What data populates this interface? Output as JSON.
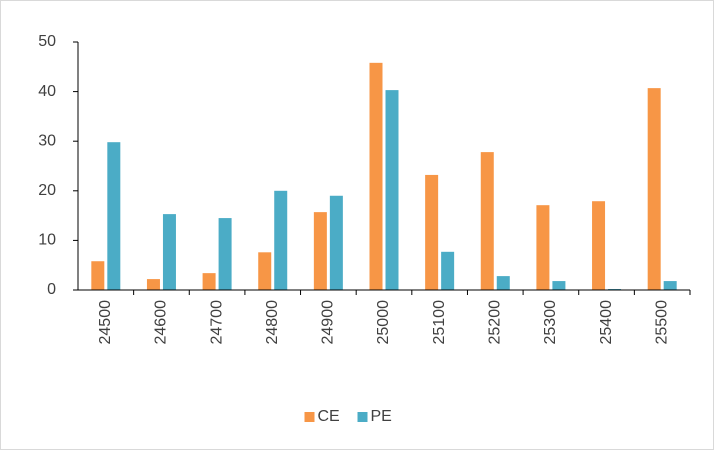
{
  "chart_data": {
    "type": "bar",
    "categories": [
      "24500",
      "24600",
      "24700",
      "24800",
      "24900",
      "25000",
      "25100",
      "25200",
      "25300",
      "25400",
      "25500"
    ],
    "series": [
      {
        "name": "CE",
        "color": "#f79646",
        "values": [
          5.8,
          2.2,
          3.4,
          7.6,
          15.7,
          45.8,
          23.2,
          27.8,
          17.1,
          17.9,
          40.7
        ]
      },
      {
        "name": "PE",
        "color": "#4bacc6",
        "values": [
          29.8,
          15.3,
          14.5,
          20,
          19,
          40.3,
          7.7,
          2.8,
          1.8,
          0.2,
          1.8
        ]
      }
    ],
    "ylim": [
      0,
      50
    ],
    "yticks": [
      0,
      10,
      20,
      30,
      40,
      50
    ],
    "grid": false,
    "legend": "bottom"
  }
}
